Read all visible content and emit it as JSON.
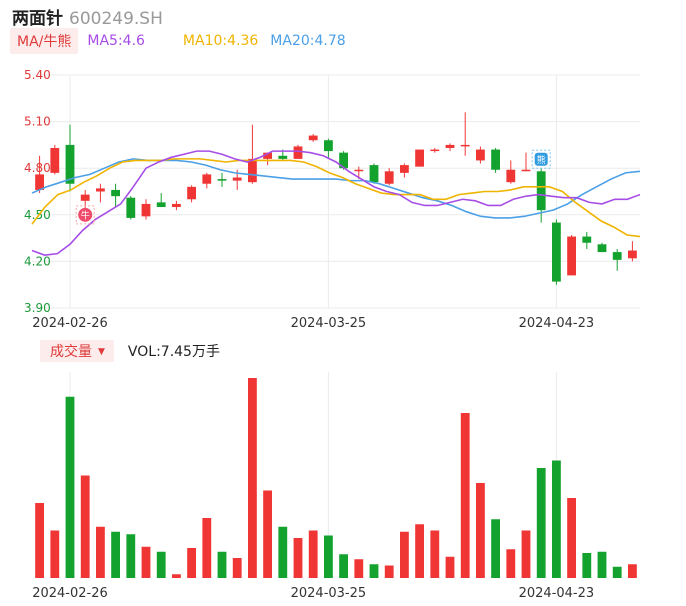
{
  "header": {
    "name": "两面针",
    "code": "600249.SH"
  },
  "ma_legend": {
    "button": "MA/牛熊",
    "ma5": "MA5:4.6",
    "ma10": "MA10:4.36",
    "ma20": "MA20:4.78"
  },
  "volume_legend": {
    "button": "成交量",
    "value": "VOL:7.45万手"
  },
  "colors": {
    "up": "#f03535",
    "down": "#13a22d",
    "ma5": "#a64de6",
    "ma10": "#f0b400",
    "ma20": "#4b9fe6",
    "grid": "#ebebeb"
  },
  "chart_data": {
    "type": "candlestick",
    "price_axis": {
      "ticks": [
        "5.40",
        "5.10",
        "4.80",
        "4.50",
        "4.20",
        "3.90"
      ],
      "range": [
        3.9,
        5.4
      ]
    },
    "date_labels": [
      {
        "index": 2,
        "label": "2024-02-26"
      },
      {
        "index": 19,
        "label": "2024-03-25"
      },
      {
        "index": 34,
        "label": "2024-04-23"
      }
    ],
    "markers": [
      {
        "index": 3,
        "text": "牛"
      },
      {
        "index": 33,
        "text": "熊"
      }
    ],
    "candles": [
      {
        "o": 4.66,
        "c": 4.76,
        "h": 4.88,
        "l": 4.64
      },
      {
        "o": 4.77,
        "c": 4.93,
        "h": 4.95,
        "l": 4.76
      },
      {
        "o": 4.95,
        "c": 4.7,
        "h": 5.08,
        "l": 4.65
      },
      {
        "o": 4.59,
        "c": 4.63,
        "h": 4.66,
        "l": 4.52
      },
      {
        "o": 4.65,
        "c": 4.67,
        "h": 4.7,
        "l": 4.58
      },
      {
        "o": 4.66,
        "c": 4.62,
        "h": 4.7,
        "l": 4.55
      },
      {
        "o": 4.61,
        "c": 4.48,
        "h": 4.62,
        "l": 4.47
      },
      {
        "o": 4.49,
        "c": 4.57,
        "h": 4.6,
        "l": 4.47
      },
      {
        "o": 4.58,
        "c": 4.55,
        "h": 4.64,
        "l": 4.55
      },
      {
        "o": 4.55,
        "c": 4.57,
        "h": 4.59,
        "l": 4.53
      },
      {
        "o": 4.6,
        "c": 4.68,
        "h": 4.69,
        "l": 4.58
      },
      {
        "o": 4.7,
        "c": 4.76,
        "h": 4.77,
        "l": 4.67
      },
      {
        "o": 4.73,
        "c": 4.72,
        "h": 4.77,
        "l": 4.68
      },
      {
        "o": 4.72,
        "c": 4.74,
        "h": 4.79,
        "l": 4.66
      },
      {
        "o": 4.71,
        "c": 4.86,
        "h": 5.08,
        "l": 4.7
      },
      {
        "o": 4.86,
        "c": 4.9,
        "h": 4.9,
        "l": 4.82
      },
      {
        "o": 4.88,
        "c": 4.86,
        "h": 4.92,
        "l": 4.85
      },
      {
        "o": 4.86,
        "c": 4.94,
        "h": 4.95,
        "l": 4.86
      },
      {
        "o": 4.98,
        "c": 5.01,
        "h": 5.02,
        "l": 4.97
      },
      {
        "o": 4.98,
        "c": 4.91,
        "h": 4.99,
        "l": 4.86
      },
      {
        "o": 4.9,
        "c": 4.8,
        "h": 4.91,
        "l": 4.79
      },
      {
        "o": 4.79,
        "c": 4.79,
        "h": 4.81,
        "l": 4.73
      },
      {
        "o": 4.82,
        "c": 4.71,
        "h": 4.83,
        "l": 4.7
      },
      {
        "o": 4.7,
        "c": 4.78,
        "h": 4.8,
        "l": 4.69
      },
      {
        "o": 4.77,
        "c": 4.82,
        "h": 4.83,
        "l": 4.74
      },
      {
        "o": 4.81,
        "c": 4.92,
        "h": 4.92,
        "l": 4.81
      },
      {
        "o": 4.92,
        "c": 4.92,
        "h": 4.93,
        "l": 4.9
      },
      {
        "o": 4.93,
        "c": 4.95,
        "h": 4.96,
        "l": 4.91
      },
      {
        "o": 4.95,
        "c": 4.95,
        "h": 5.16,
        "l": 4.88
      },
      {
        "o": 4.85,
        "c": 4.92,
        "h": 4.94,
        "l": 4.83
      },
      {
        "o": 4.92,
        "c": 4.79,
        "h": 4.93,
        "l": 4.77
      },
      {
        "o": 4.71,
        "c": 4.79,
        "h": 4.85,
        "l": 4.7
      },
      {
        "o": 4.79,
        "c": 4.79,
        "h": 4.9,
        "l": 4.78
      },
      {
        "o": 4.78,
        "c": 4.53,
        "h": 4.8,
        "l": 4.45
      },
      {
        "o": 4.45,
        "c": 4.07,
        "h": 4.47,
        "l": 4.05
      },
      {
        "o": 4.11,
        "c": 4.36,
        "h": 4.37,
        "l": 4.11
      },
      {
        "o": 4.36,
        "c": 4.32,
        "h": 4.39,
        "l": 4.28
      },
      {
        "o": 4.31,
        "c": 4.26,
        "h": 4.32,
        "l": 4.26
      },
      {
        "o": 4.26,
        "c": 4.21,
        "h": 4.28,
        "l": 4.14
      },
      {
        "o": 4.22,
        "c": 4.27,
        "h": 4.33,
        "l": 4.2
      }
    ],
    "ma5": [
      4.27,
      4.24,
      4.25,
      4.31,
      4.4,
      4.47,
      4.52,
      4.57,
      4.68,
      4.8,
      4.84,
      4.87,
      4.89,
      4.91,
      4.91,
      4.89,
      4.86,
      4.84,
      4.87,
      4.91,
      4.91,
      4.91,
      4.9,
      4.88,
      4.84,
      4.78,
      4.73,
      4.68,
      4.65,
      4.63,
      4.58,
      4.56,
      4.56,
      4.58,
      4.6,
      4.59,
      4.56,
      4.56,
      4.6,
      4.62,
      4.63,
      4.62,
      4.61,
      4.61,
      4.58,
      4.57,
      4.6,
      4.6,
      4.63
    ],
    "ma10": [
      4.44,
      4.55,
      4.63,
      4.66,
      4.71,
      4.75,
      4.8,
      4.84,
      4.85,
      4.85,
      4.85,
      4.86,
      4.86,
      4.86,
      4.85,
      4.84,
      4.85,
      4.85,
      4.85,
      4.85,
      4.85,
      4.84,
      4.81,
      4.77,
      4.74,
      4.7,
      4.67,
      4.64,
      4.63,
      4.63,
      4.63,
      4.6,
      4.6,
      4.63,
      4.64,
      4.65,
      4.65,
      4.66,
      4.68,
      4.68,
      4.68,
      4.65,
      4.58,
      4.52,
      4.46,
      4.42,
      4.37,
      4.36
    ],
    "ma20": [
      4.64,
      4.68,
      4.71,
      4.74,
      4.76,
      4.8,
      4.84,
      4.86,
      4.85,
      4.85,
      4.85,
      4.84,
      4.82,
      4.79,
      4.77,
      4.76,
      4.75,
      4.74,
      4.73,
      4.73,
      4.73,
      4.73,
      4.72,
      4.72,
      4.7,
      4.67,
      4.64,
      4.61,
      4.59,
      4.56,
      4.52,
      4.49,
      4.48,
      4.48,
      4.49,
      4.51,
      4.53,
      4.57,
      4.63,
      4.68,
      4.73,
      4.77,
      4.78
    ],
    "volume": [
      60,
      38,
      145,
      82,
      41,
      37,
      35,
      25,
      21,
      3,
      24,
      48,
      21,
      16,
      160,
      70,
      41,
      32,
      38,
      34,
      19,
      15,
      11,
      10,
      37,
      43,
      38,
      17,
      132,
      76,
      47,
      23,
      38,
      88,
      94,
      64,
      20,
      21,
      9,
      11
    ]
  }
}
